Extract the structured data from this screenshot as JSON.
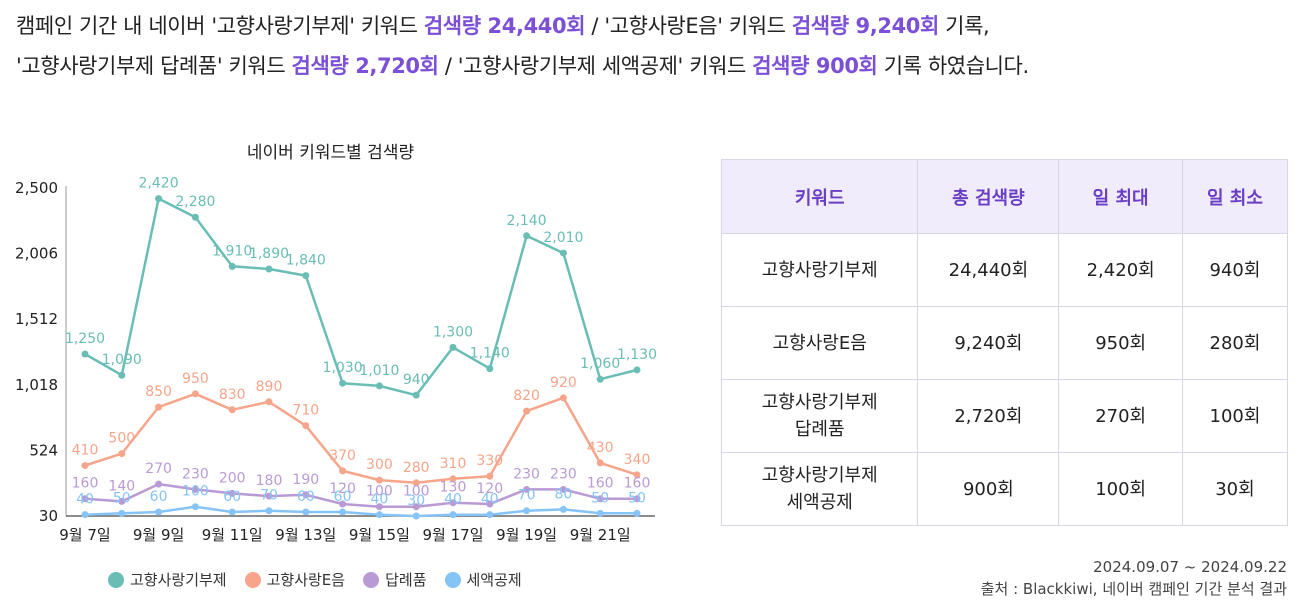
{
  "headline": {
    "l1a": "캠페인 기간 내 네이버 '고향사랑기부제' 키워드 ",
    "l1b": "검색량 24,440회",
    "l1c": " / '고향사랑E음' 키워드 ",
    "l1d": "검색량 9,240회",
    "l1e": " 기록,",
    "l2a": "'고향사랑기부제 답례품' 키워드 ",
    "l2b": "검색량 2,720회",
    "l2c": " / '고향사랑기부제 세액공제' 키워드 ",
    "l2d": "검색량 900회",
    "l2e": " 기록 하였습니다."
  },
  "chart_data": {
    "type": "line",
    "title": "네이버 키워드별 검색량",
    "x": [
      "9월 7일",
      "9월 8일",
      "9월 9일",
      "9월 10일",
      "9월 11일",
      "9월 12일",
      "9월 13일",
      "9월 14일",
      "9월 15일",
      "9월 16일",
      "9월 17일",
      "9월 18일",
      "9월 19일",
      "9월 20일",
      "9월 21일",
      "9월 22일"
    ],
    "x_tick_labels": [
      "9월 7일",
      "9월 9일",
      "9월 11일",
      "9월 13일",
      "9월 15일",
      "9월 17일",
      "9월 19일",
      "9월 21일"
    ],
    "y_ticks": [
      "30",
      "524",
      "1,018",
      "1,512",
      "2,006",
      "2,500"
    ],
    "ylim": [
      30,
      2500
    ],
    "legend_position": "bottom",
    "series": [
      {
        "name": "고향사랑기부제",
        "color": "#69bdb5",
        "values": [
          1250,
          1090,
          2420,
          2280,
          1910,
          1890,
          1840,
          1030,
          1010,
          940,
          1300,
          1140,
          2140,
          2010,
          1060,
          1130
        ],
        "labels": [
          "1,250",
          "1,090",
          "2,420",
          "2,280",
          "1,910",
          "1,890",
          "1,840",
          "1,030",
          "1,010",
          "940",
          "1,300",
          "1,140",
          "2,140",
          "2,010",
          "1,060",
          "1,130"
        ]
      },
      {
        "name": "고향사랑E음",
        "color": "#f6a58a",
        "values": [
          410,
          500,
          850,
          950,
          830,
          890,
          710,
          370,
          300,
          280,
          310,
          330,
          820,
          920,
          430,
          340
        ],
        "labels": [
          "410",
          "500",
          "850",
          "950",
          "830",
          "890",
          "710",
          "370",
          "300",
          "280",
          "310",
          "330",
          "820",
          "920",
          "430",
          "340"
        ]
      },
      {
        "name": "답례품",
        "color": "#b99ad4",
        "values": [
          160,
          140,
          270,
          230,
          200,
          180,
          190,
          120,
          100,
          100,
          130,
          120,
          230,
          230,
          160,
          160
        ],
        "labels": [
          "160",
          "140",
          "270",
          "230",
          "200",
          "180",
          "190",
          "120",
          "100",
          "100",
          "130",
          "120",
          "230",
          "230",
          "160",
          "160"
        ]
      },
      {
        "name": "세액공제",
        "color": "#86c3f6",
        "values": [
          40,
          50,
          60,
          100,
          60,
          70,
          60,
          60,
          40,
          30,
          40,
          40,
          70,
          80,
          50,
          50
        ],
        "labels": [
          "40",
          "50",
          "60",
          "100",
          "60",
          "70",
          "60",
          "60",
          "40",
          "30",
          "40",
          "40",
          "70",
          "80",
          "50",
          "50"
        ]
      }
    ]
  },
  "table": {
    "headers": [
      "키워드",
      "총 검색량",
      "일 최대",
      "일 최소"
    ],
    "rows": [
      [
        "고향사랑기부제",
        "24,440회",
        "2,420회",
        "940회"
      ],
      [
        "고향사랑E음",
        "9,240회",
        "950회",
        "280회"
      ],
      [
        "고향사랑기부제\n답례품",
        "2,720회",
        "270회",
        "100회"
      ],
      [
        "고향사랑기부제\n세액공제",
        "900회",
        "100회",
        "30회"
      ]
    ]
  },
  "footer": {
    "period": "2024.09.07 ~ 2024.09.22",
    "source": "출처 : Blackkiwi, 네이버 캠페인 기간 분석 결과"
  }
}
